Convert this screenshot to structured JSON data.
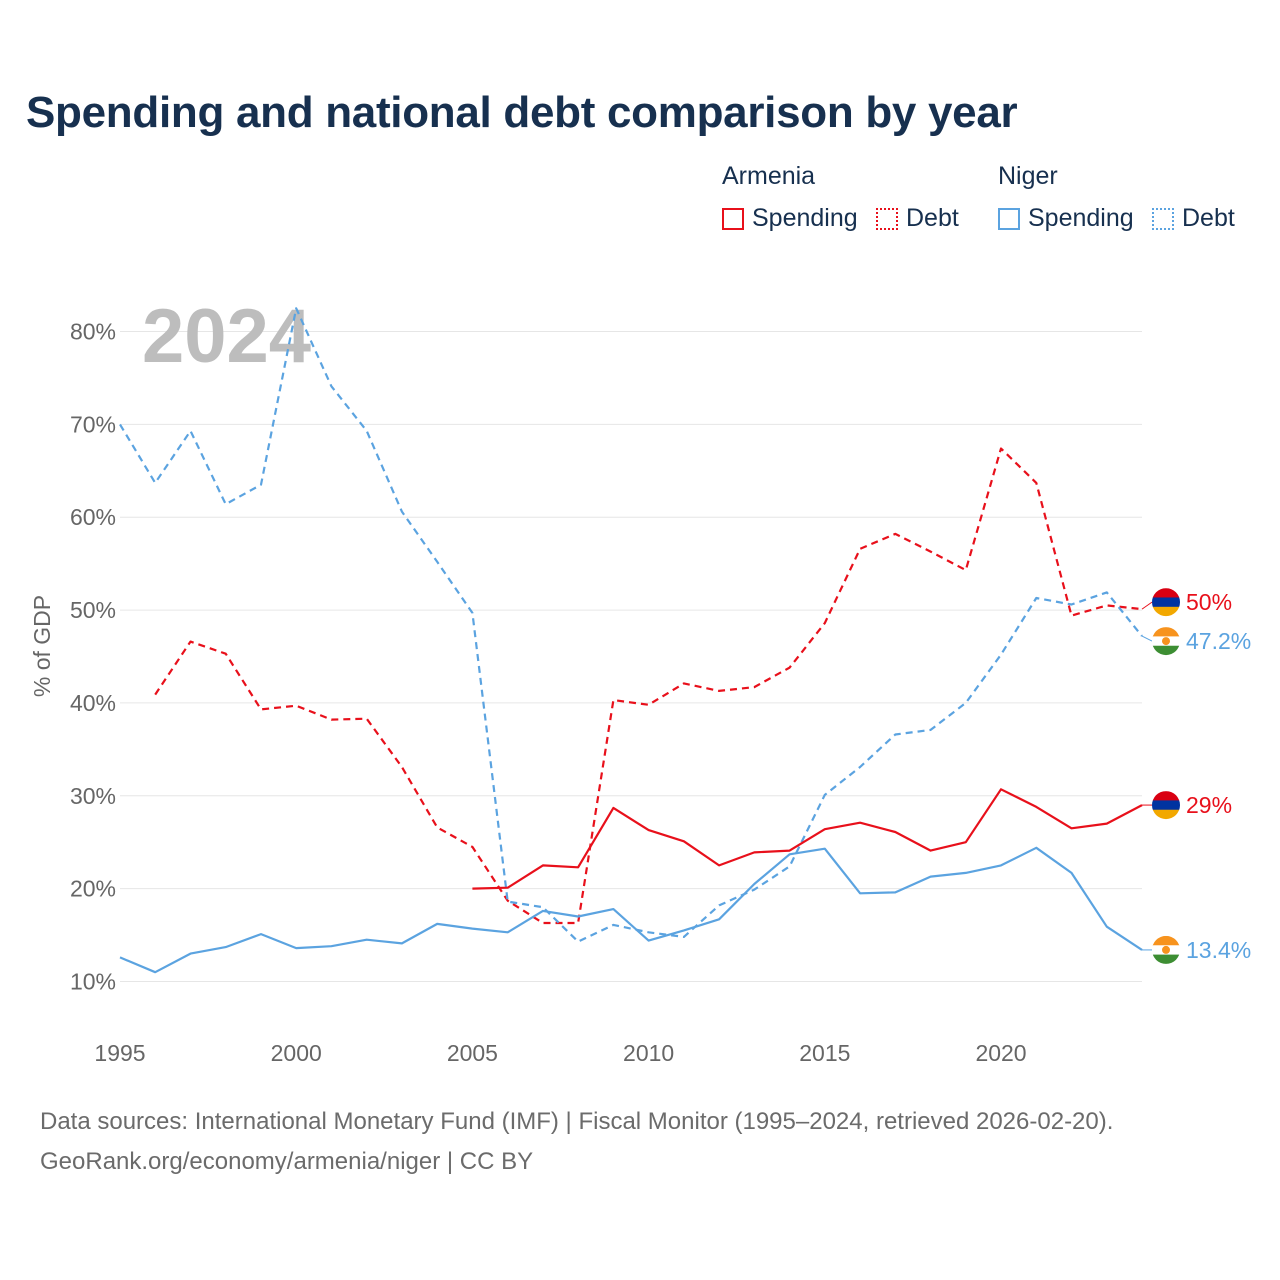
{
  "title": "Spending and national debt comparison by year",
  "legend": {
    "groups": [
      {
        "country": "Armenia",
        "color": "#e8101b",
        "items": [
          "Spending",
          "Debt"
        ]
      },
      {
        "country": "Niger",
        "color": "#5ba3e0",
        "items": [
          "Spending",
          "Debt"
        ]
      }
    ]
  },
  "year_watermark": "2024",
  "source": {
    "line1": "Data sources: International Monetary Fund (IMF) | Fiscal Monitor (1995–2024, retrieved 2026-02-20).",
    "line2": "GeoRank.org/economy/armenia/niger | CC BY"
  },
  "chart_data": {
    "type": "line",
    "title": "Spending and national debt comparison by year",
    "ylabel": "% of GDP",
    "xlabel": "",
    "xlim": [
      1995,
      2024
    ],
    "ylim": [
      10,
      80
    ],
    "x_ticks": [
      "1995",
      "2000",
      "2005",
      "2010",
      "2015",
      "2020"
    ],
    "y_ticks": [
      "10%",
      "20%",
      "30%",
      "40%",
      "50%",
      "60%",
      "70%",
      "80%"
    ],
    "grid": true,
    "series": [
      {
        "name": "Armenia Debt",
        "country": "Armenia",
        "metric": "Debt",
        "color": "#e8101b",
        "dash": true,
        "end_label": "50%",
        "flag": "armenia-flag-icon",
        "x": [
          1996,
          1997,
          1998,
          1999,
          2000,
          2001,
          2002,
          2003,
          2004,
          2005,
          2006,
          2007,
          2008,
          2009,
          2010,
          2011,
          2012,
          2013,
          2014,
          2015,
          2016,
          2017,
          2018,
          2019,
          2020,
          2021,
          2022,
          2023,
          2024
        ],
        "values": [
          40.9,
          46.6,
          45.3,
          39.3,
          39.7,
          38.2,
          38.3,
          33.1,
          26.6,
          24.5,
          18.7,
          16.3,
          16.3,
          40.3,
          39.8,
          42.1,
          41.3,
          41.7,
          43.8,
          48.6,
          56.6,
          58.2,
          56.3,
          54.3,
          67.4,
          63.7,
          49.4,
          50.5,
          50.1
        ]
      },
      {
        "name": "Niger Debt",
        "country": "Niger",
        "metric": "Debt",
        "color": "#5ba3e0",
        "dash": true,
        "end_label": "47.2%",
        "flag": "niger-flag-icon",
        "x": [
          1995,
          1996,
          1997,
          1998,
          1999,
          2000,
          2001,
          2002,
          2003,
          2004,
          2005,
          2006,
          2007,
          2008,
          2009,
          2010,
          2011,
          2012,
          2013,
          2014,
          2015,
          2016,
          2017,
          2018,
          2019,
          2020,
          2021,
          2022,
          2023,
          2024
        ],
        "values": [
          70.0,
          63.7,
          69.3,
          61.4,
          63.5,
          82.5,
          74.1,
          69.3,
          60.6,
          55.2,
          49.7,
          18.6,
          18.0,
          14.3,
          16.1,
          15.3,
          14.8,
          18.2,
          19.9,
          22.4,
          30.1,
          33.1,
          36.6,
          37.1,
          40.0,
          45.2,
          51.3,
          50.6,
          51.9,
          47.2
        ]
      },
      {
        "name": "Armenia Spending",
        "country": "Armenia",
        "metric": "Spending",
        "color": "#e8101b",
        "dash": false,
        "end_label": "29%",
        "flag": "armenia-flag-icon",
        "x": [
          2005,
          2006,
          2007,
          2008,
          2009,
          2010,
          2011,
          2012,
          2013,
          2014,
          2015,
          2016,
          2017,
          2018,
          2019,
          2020,
          2021,
          2022,
          2023,
          2024
        ],
        "values": [
          20.0,
          20.1,
          22.5,
          22.3,
          28.7,
          26.3,
          25.1,
          22.5,
          23.9,
          24.1,
          26.4,
          27.1,
          26.1,
          24.1,
          25.0,
          30.7,
          28.8,
          26.5,
          27.0,
          29.0
        ]
      },
      {
        "name": "Niger Spending",
        "country": "Niger",
        "metric": "Spending",
        "color": "#5ba3e0",
        "dash": false,
        "end_label": "13.4%",
        "flag": "niger-flag-icon",
        "x": [
          1995,
          1996,
          1997,
          1998,
          1999,
          2000,
          2001,
          2002,
          2003,
          2004,
          2005,
          2006,
          2007,
          2008,
          2009,
          2010,
          2011,
          2012,
          2013,
          2014,
          2015,
          2016,
          2017,
          2018,
          2019,
          2020,
          2021,
          2022,
          2023,
          2024
        ],
        "values": [
          12.6,
          11.0,
          13.0,
          13.7,
          15.1,
          13.6,
          13.8,
          14.5,
          14.1,
          16.2,
          15.7,
          15.3,
          17.6,
          17.0,
          17.8,
          14.4,
          15.5,
          16.7,
          20.5,
          23.7,
          24.3,
          19.5,
          19.6,
          21.3,
          21.7,
          22.5,
          24.4,
          21.7,
          15.9,
          13.4
        ]
      }
    ]
  }
}
